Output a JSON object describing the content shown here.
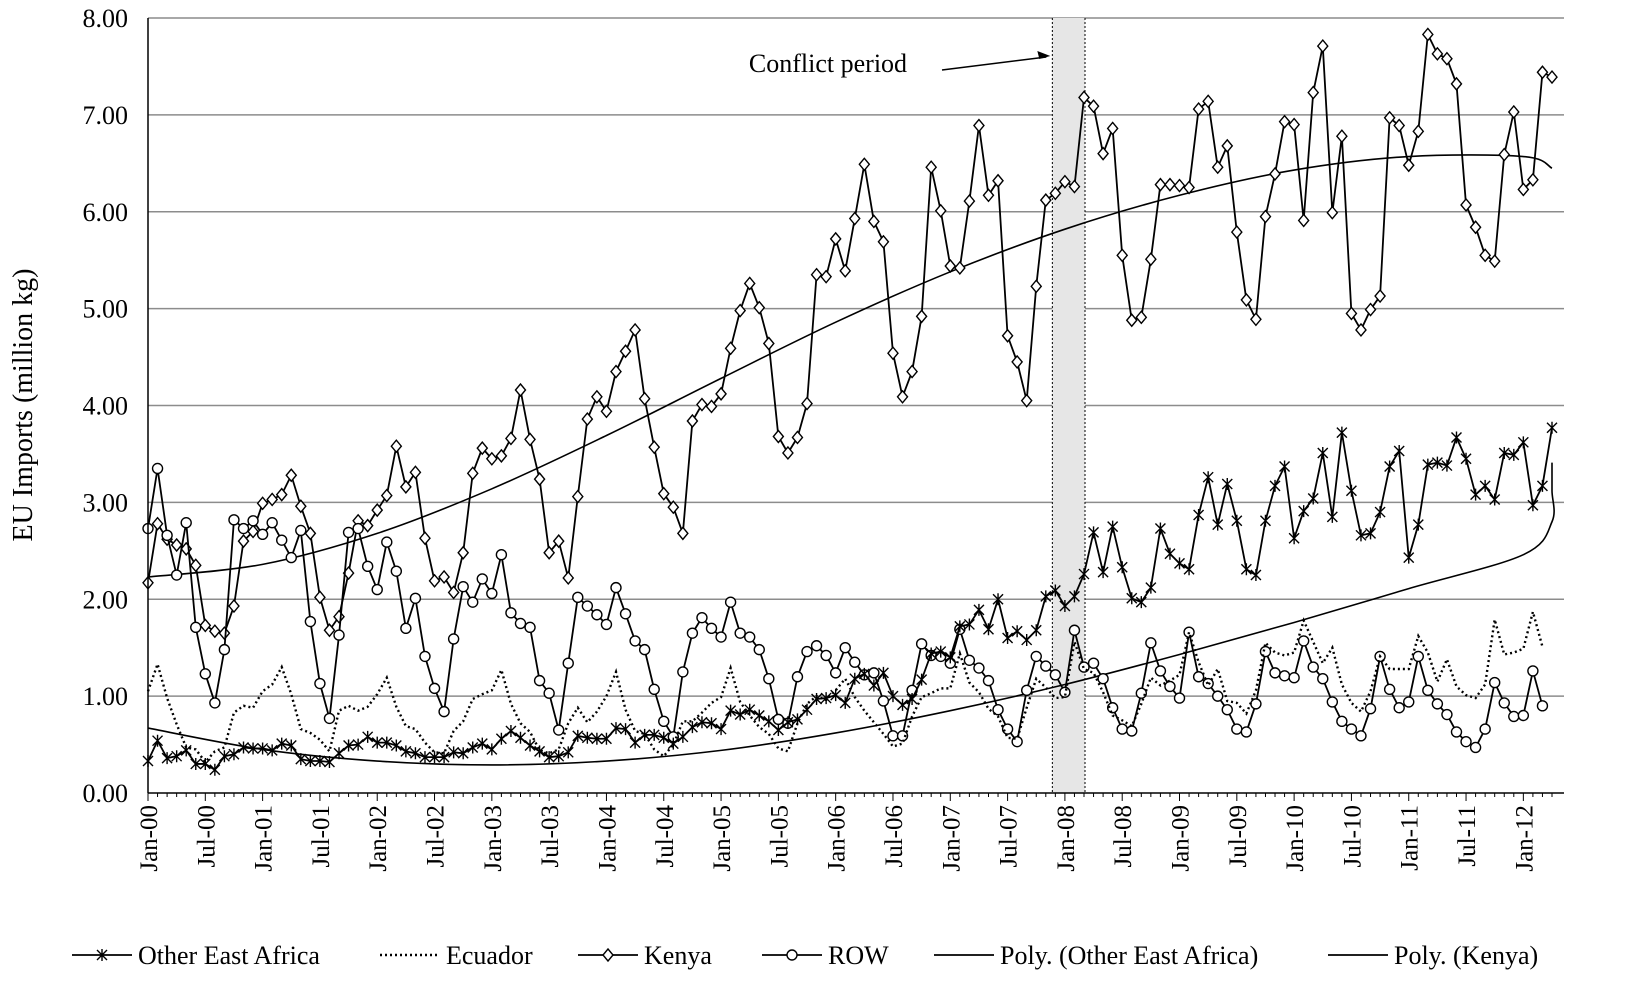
{
  "chart_data": {
    "type": "line",
    "ylabel": "EU Imports (million kg)",
    "ylim": [
      0,
      8
    ],
    "yticks": [
      "0.00",
      "1.00",
      "2.00",
      "3.00",
      "4.00",
      "5.00",
      "6.00",
      "7.00",
      "8.00"
    ],
    "grid": "horizontal",
    "legend_position": "bottom",
    "x_start": "Jan-00",
    "x_tick_labels": [
      "Jan-00",
      "Jul-00",
      "Jan-01",
      "Jul-01",
      "Jan-02",
      "Jul-02",
      "Jan-03",
      "Jul-03",
      "Jan-04",
      "Jul-04",
      "Jan-05",
      "Jul-05",
      "Jan-06",
      "Jul-06",
      "Jan-07",
      "Jul-07",
      "Jan-08",
      "Jul-08",
      "Jan-09",
      "Jul-09",
      "Jan-10",
      "Jul-10",
      "Jan-11",
      "Jul-11",
      "Jan-12"
    ],
    "annotation": {
      "text": "Conflict period",
      "shaded_from": "Dec-07",
      "shaded_to": "Mar-08"
    },
    "colors": {
      "line": "#000000",
      "grid": "#8c8c8c",
      "shade": "#e6e6e6"
    },
    "series": [
      {
        "name": "Kenya",
        "style": "solid-diamond",
        "values": [
          2.17,
          2.78,
          2.62,
          2.56,
          2.52,
          2.35,
          1.73,
          1.67,
          1.65,
          1.93,
          2.6,
          2.7,
          2.99,
          3.03,
          3.08,
          3.28,
          2.96,
          2.68,
          2.02,
          1.68,
          1.82,
          2.27,
          2.81,
          2.76,
          2.92,
          3.07,
          3.58,
          3.16,
          3.31,
          2.63,
          2.19,
          2.23,
          2.07,
          2.48,
          3.3,
          3.56,
          3.45,
          3.48,
          3.66,
          4.16,
          3.65,
          3.24,
          2.48,
          2.6,
          2.22,
          3.06,
          3.86,
          4.09,
          3.94,
          4.35,
          4.56,
          4.78,
          4.07,
          3.57,
          3.09,
          2.95,
          2.68,
          3.84,
          4.01,
          3.99,
          4.12,
          4.59,
          4.98,
          5.26,
          5.01,
          4.64,
          3.68,
          3.51,
          3.67,
          4.02,
          5.35,
          5.33,
          5.72,
          5.39,
          5.93,
          6.49,
          5.9,
          5.69,
          4.54,
          4.09,
          4.35,
          4.92,
          6.46,
          6.01,
          5.44,
          5.42,
          6.11,
          6.89,
          6.17,
          6.32,
          4.72,
          4.45,
          4.05,
          5.23,
          6.12,
          6.19,
          6.31,
          6.26,
          7.18,
          7.09,
          6.6,
          6.86,
          5.55,
          4.88,
          4.91,
          5.51,
          6.28,
          6.28,
          6.27,
          6.25,
          7.06,
          7.14,
          6.46,
          6.68,
          5.79,
          5.09,
          4.89,
          5.95,
          6.39,
          6.93,
          6.9,
          5.91,
          7.23,
          7.71,
          5.99,
          6.78,
          4.95,
          4.78,
          4.99,
          5.13,
          6.97,
          6.89,
          6.48,
          6.83,
          7.83,
          7.63,
          7.58,
          7.32,
          6.07,
          5.84,
          5.55,
          5.49,
          6.59,
          7.03,
          6.23,
          6.33,
          7.44,
          7.39
        ]
      },
      {
        "name": "ROW",
        "style": "solid-circle",
        "values": [
          2.73,
          3.35,
          2.66,
          2.25,
          2.79,
          1.71,
          1.23,
          0.93,
          1.48,
          2.82,
          2.73,
          2.81,
          2.67,
          2.79,
          2.61,
          2.43,
          2.71,
          1.77,
          1.13,
          0.77,
          1.63,
          2.69,
          2.73,
          2.34,
          2.1,
          2.59,
          2.29,
          1.7,
          2.01,
          1.41,
          1.08,
          0.84,
          1.59,
          2.13,
          1.97,
          2.21,
          2.06,
          2.46,
          1.86,
          1.75,
          1.71,
          1.16,
          1.03,
          0.65,
          1.34,
          2.02,
          1.93,
          1.84,
          1.74,
          2.12,
          1.85,
          1.57,
          1.48,
          1.07,
          0.74,
          0.58,
          1.25,
          1.65,
          1.81,
          1.7,
          1.61,
          1.97,
          1.65,
          1.61,
          1.48,
          1.18,
          0.76,
          0.72,
          1.2,
          1.46,
          1.52,
          1.42,
          1.24,
          1.5,
          1.35,
          1.22,
          1.24,
          0.95,
          0.59,
          0.59,
          1.06,
          1.54,
          1.42,
          1.41,
          1.34,
          1.69,
          1.37,
          1.29,
          1.16,
          0.86,
          0.66,
          0.53,
          1.06,
          1.41,
          1.31,
          1.22,
          1.04,
          1.68,
          1.3,
          1.34,
          1.18,
          0.88,
          0.66,
          0.64,
          1.03,
          1.55,
          1.26,
          1.1,
          0.98,
          1.66,
          1.2,
          1.13,
          1.0,
          0.86,
          0.66,
          0.63,
          0.92,
          1.46,
          1.24,
          1.21,
          1.19,
          1.57,
          1.3,
          1.18,
          0.94,
          0.74,
          0.66,
          0.59,
          0.87,
          1.41,
          1.07,
          0.88,
          0.94,
          1.41,
          1.06,
          0.92,
          0.81,
          0.63,
          0.53,
          0.47,
          0.66,
          1.14,
          0.93,
          0.79,
          0.8,
          1.26,
          0.9
        ]
      },
      {
        "name": "Other East Africa",
        "style": "solid-star",
        "values": [
          0.33,
          0.54,
          0.36,
          0.38,
          0.44,
          0.3,
          0.3,
          0.24,
          0.38,
          0.4,
          0.47,
          0.46,
          0.46,
          0.44,
          0.51,
          0.49,
          0.35,
          0.33,
          0.33,
          0.32,
          0.41,
          0.49,
          0.5,
          0.58,
          0.52,
          0.52,
          0.49,
          0.43,
          0.41,
          0.37,
          0.37,
          0.37,
          0.42,
          0.41,
          0.47,
          0.51,
          0.45,
          0.56,
          0.64,
          0.57,
          0.49,
          0.43,
          0.37,
          0.38,
          0.42,
          0.59,
          0.57,
          0.56,
          0.56,
          0.67,
          0.66,
          0.52,
          0.6,
          0.6,
          0.57,
          0.51,
          0.58,
          0.68,
          0.73,
          0.72,
          0.66,
          0.85,
          0.81,
          0.86,
          0.8,
          0.74,
          0.65,
          0.73,
          0.76,
          0.86,
          0.97,
          0.98,
          1.01,
          0.93,
          1.18,
          1.23,
          1.11,
          1.24,
          1.0,
          0.91,
          0.97,
          1.17,
          1.44,
          1.46,
          1.4,
          1.72,
          1.74,
          1.89,
          1.69,
          2.0,
          1.6,
          1.67,
          1.58,
          1.68,
          2.03,
          2.09,
          1.93,
          2.03,
          2.26,
          2.69,
          2.28,
          2.75,
          2.33,
          2.01,
          1.97,
          2.12,
          2.73,
          2.47,
          2.37,
          2.31,
          2.87,
          3.26,
          2.77,
          3.19,
          2.81,
          2.31,
          2.25,
          2.81,
          3.17,
          3.37,
          2.63,
          2.91,
          3.04,
          3.51,
          2.85,
          3.72,
          3.12,
          2.66,
          2.68,
          2.9,
          3.37,
          3.53,
          2.43,
          2.77,
          3.39,
          3.41,
          3.38,
          3.67,
          3.45,
          3.08,
          3.17,
          3.03,
          3.51,
          3.49,
          3.62,
          2.97,
          3.17,
          3.77
        ]
      },
      {
        "name": "Ecuador",
        "style": "dotted",
        "values": [
          1.05,
          1.33,
          0.98,
          0.71,
          0.47,
          0.45,
          0.32,
          0.43,
          0.47,
          0.83,
          0.9,
          0.88,
          1.05,
          1.12,
          1.3,
          1.02,
          0.66,
          0.62,
          0.55,
          0.43,
          0.85,
          0.9,
          0.85,
          0.89,
          1.02,
          1.19,
          0.89,
          0.69,
          0.66,
          0.52,
          0.42,
          0.41,
          0.64,
          0.74,
          0.97,
          1.02,
          1.06,
          1.27,
          0.92,
          0.72,
          0.63,
          0.44,
          0.41,
          0.45,
          0.72,
          0.88,
          0.73,
          0.84,
          1.0,
          1.25,
          0.86,
          0.64,
          0.61,
          0.45,
          0.38,
          0.5,
          0.74,
          0.74,
          0.83,
          0.93,
          0.99,
          1.29,
          0.94,
          0.8,
          0.68,
          0.61,
          0.46,
          0.43,
          0.72,
          0.92,
          1.0,
          0.96,
          1.06,
          1.18,
          0.99,
          0.85,
          0.73,
          0.61,
          0.48,
          0.51,
          0.79,
          0.99,
          1.03,
          1.08,
          1.08,
          1.44,
          1.14,
          1.04,
          0.87,
          0.79,
          0.57,
          0.56,
          0.88,
          1.18,
          1.09,
          0.98,
          0.99,
          1.56,
          1.28,
          1.24,
          1.04,
          0.8,
          0.75,
          0.69,
          0.92,
          1.19,
          1.11,
          1.16,
          1.22,
          1.66,
          1.35,
          1.11,
          1.28,
          0.95,
          0.93,
          0.82,
          1.06,
          1.55,
          1.45,
          1.42,
          1.45,
          1.78,
          1.56,
          1.34,
          1.5,
          1.12,
          0.93,
          0.84,
          1.05,
          1.41,
          1.28,
          1.28,
          1.28,
          1.62,
          1.45,
          1.15,
          1.38,
          1.1,
          1.01,
          0.98,
          1.12,
          1.79,
          1.43,
          1.45,
          1.49,
          1.87,
          1.51
        ]
      }
    ],
    "trendlines": [
      {
        "name": "Poly. (Other East Africa)",
        "values_at_jan": [
          0.67,
          0.45,
          0.33,
          0.29,
          0.33,
          0.44,
          0.62,
          0.85,
          1.12,
          1.43,
          1.76,
          2.11,
          2.46,
          2.8,
          3.12,
          3.41
        ]
      },
      {
        "name": "Poly. (Kenya)",
        "values_at_jan": [
          2.23,
          2.36,
          2.68,
          3.14,
          3.69,
          4.28,
          4.86,
          5.38,
          5.82,
          6.17,
          6.43,
          6.57,
          6.57,
          6.45
        ]
      }
    ],
    "legend": [
      {
        "label": "Other East Africa",
        "marker": "star",
        "dash": "solid"
      },
      {
        "label": "Ecuador",
        "marker": "none",
        "dash": "dotted"
      },
      {
        "label": "Kenya",
        "marker": "diamond",
        "dash": "solid"
      },
      {
        "label": "ROW",
        "marker": "circle",
        "dash": "solid"
      },
      {
        "label": "Poly. (Other East Africa)",
        "marker": "none",
        "dash": "solid"
      },
      {
        "label": "Poly. (Kenya)",
        "marker": "none",
        "dash": "solid"
      }
    ]
  }
}
